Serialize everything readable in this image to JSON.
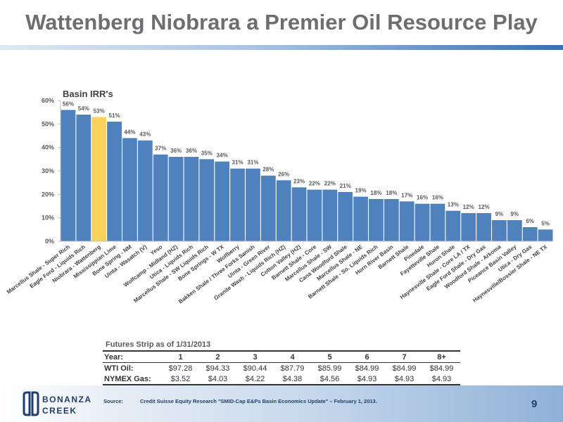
{
  "title": "Wattenberg Niobrara a Premier Oil Resource Play",
  "chart_data": {
    "type": "bar",
    "title": "Basin IRR's",
    "xlabel": "",
    "ylabel": "",
    "ylim": [
      0,
      60
    ],
    "yticks": [
      "0%",
      "10%",
      "20%",
      "30%",
      "40%",
      "50%",
      "60%"
    ],
    "grid": false,
    "bar_color": "#4f81bd",
    "highlight_color": "#fcd25a",
    "highlight_category": "Niobrara - Wattenberg",
    "categories": [
      "Marcellus Shale - Super Rich",
      "Eagle Ford - Liquids Rich",
      "Niobrara - Wattenberg",
      "Mississippian Lime",
      "Bone Spring - NM",
      "Uinta - Wasatch (V)",
      "Yeso",
      "Wolfcamp - Midland (HZ)",
      "Utica - Liquids Rich",
      "Marcellus Shale - SW Liquids Rich",
      "Bone Springs - W TX",
      "Wolfberry",
      "Bakken Shale / Three Forks Sanish",
      "Uinta - Green River",
      "Granite Wash - Liquids Rich (HZ)",
      "Cotton Valley (HZ)",
      "Barnett Shale - Core",
      "Marcellus Shale - SW",
      "Cana Woodford Shale",
      "Marcellus Shale - NE",
      "Barnett Shale - So. Liquids Rich",
      "Horn River Basin",
      "Barnett Shale",
      "Pinedale",
      "Fayetteville Shale",
      "Huron Shale",
      "Haynesville Shale - Core LA / TX",
      "Eagle Ford Shale - Dry Gas",
      "Woodford Shale - Arkoma",
      "Piceance Basin Valley",
      "Utica - Dry Gas",
      "Haynesville/Bossier Shale - NE TX"
    ],
    "values": [
      56,
      54,
      53,
      51,
      44,
      43,
      37,
      36,
      36,
      35,
      34,
      31,
      31,
      28,
      26,
      23,
      22,
      22,
      21,
      19,
      18,
      18,
      17,
      16,
      16,
      13,
      12,
      12,
      9,
      9,
      6,
      5
    ],
    "value_labels": [
      "56%",
      "54%",
      "53%",
      "51%",
      "44%",
      "43%",
      "37%",
      "36%",
      "36%",
      "35%",
      "34%",
      "31%",
      "31%",
      "28%",
      "26%",
      "23%",
      "22%",
      "22%",
      "21%",
      "19%",
      "18%",
      "18%",
      "17%",
      "16%",
      "16%",
      "13%",
      "12%",
      "12%",
      "9%",
      "9%",
      "6%",
      "5%"
    ]
  },
  "futures": {
    "title": "Futures Strip as of 1/31/2013",
    "header": [
      "Year:",
      "1",
      "2",
      "3",
      "4",
      "5",
      "6",
      "7",
      "8+"
    ],
    "rows": [
      [
        "WTI Oil:",
        "$97.28",
        "$94.33",
        "$90.44",
        "$87.79",
        "$85.99",
        "$84.99",
        "$84.99",
        "$84.99"
      ],
      [
        "NYMEX Gas:",
        "$3.52",
        "$4.03",
        "$4.22",
        "$4.38",
        "$4.56",
        "$4.93",
        "$4.93",
        "$4.93"
      ]
    ]
  },
  "footer": {
    "logo_text": [
      "BONANZA",
      "CREEK"
    ],
    "source_label": "Source:",
    "source_text": "Credit Suisse Equity Research \"SMID-Cap E&Ps Basin Economics Update\" – February 1, 2013.",
    "page_number": "9"
  },
  "colors": {
    "title": "#6d6e71",
    "bar": "#4f81bd",
    "highlight": "#fcd25a",
    "footer_text": "#1f3f6e"
  }
}
